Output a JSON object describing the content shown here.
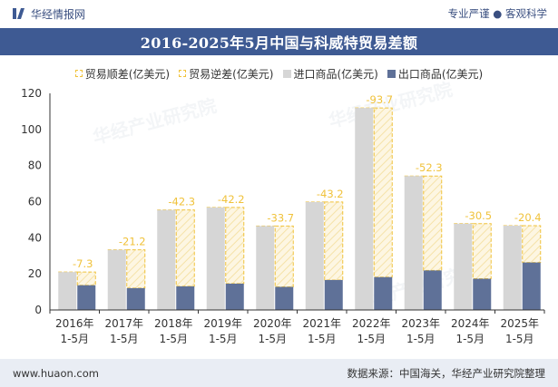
{
  "header": {
    "brand": "华经情报网",
    "slogan": "专业严谨 ● 客观科学"
  },
  "watermark": "华经产业研究院",
  "chart_data": {
    "type": "bar",
    "title": "2016-2025年5月中国与科威特贸易差额",
    "categories": [
      [
        "2016年",
        "1-5月"
      ],
      [
        "2017年",
        "1-5月"
      ],
      [
        "2018年",
        "1-5月"
      ],
      [
        "2019年",
        "1-5月"
      ],
      [
        "2020年",
        "1-5月"
      ],
      [
        "2021年",
        "1-5月"
      ],
      [
        "2022年",
        "1-5月"
      ],
      [
        "2023年",
        "1-5月"
      ],
      [
        "2024年",
        "1-5月"
      ],
      [
        "2025年",
        "1-5月"
      ]
    ],
    "series": [
      {
        "name": "贸易顺差(亿美元)",
        "values": [
          null,
          null,
          null,
          null,
          null,
          null,
          null,
          null,
          null,
          null
        ]
      },
      {
        "name": "贸易逆差(亿美元)",
        "values": [
          -7.3,
          -21.2,
          -42.3,
          -42.2,
          -33.7,
          -43.2,
          -93.7,
          -52.3,
          -30.5,
          -20.4
        ]
      },
      {
        "name": "进口商品(亿美元)",
        "values": [
          21.0,
          33.3,
          55.4,
          56.8,
          46.5,
          59.8,
          111.9,
          74.2,
          47.8,
          46.7
        ]
      },
      {
        "name": "出口商品(亿美元)",
        "values": [
          13.7,
          12.1,
          13.1,
          14.6,
          12.8,
          16.6,
          18.2,
          21.9,
          17.3,
          26.3
        ]
      }
    ],
    "ylim": [
      0,
      120
    ],
    "yticks": [
      0,
      20,
      40,
      60,
      80,
      100,
      120
    ],
    "grid": false,
    "legend_position": "top",
    "colors": {
      "surplus": "#f0c23b",
      "deficit": "#f0c23b",
      "import": "#d6d6d6",
      "export": "#5f7198",
      "title_bg": "#3e5a93"
    }
  },
  "footer": {
    "website": "www.huaon.com",
    "source": "数据来源：中国海关，华经产业研究院整理"
  }
}
